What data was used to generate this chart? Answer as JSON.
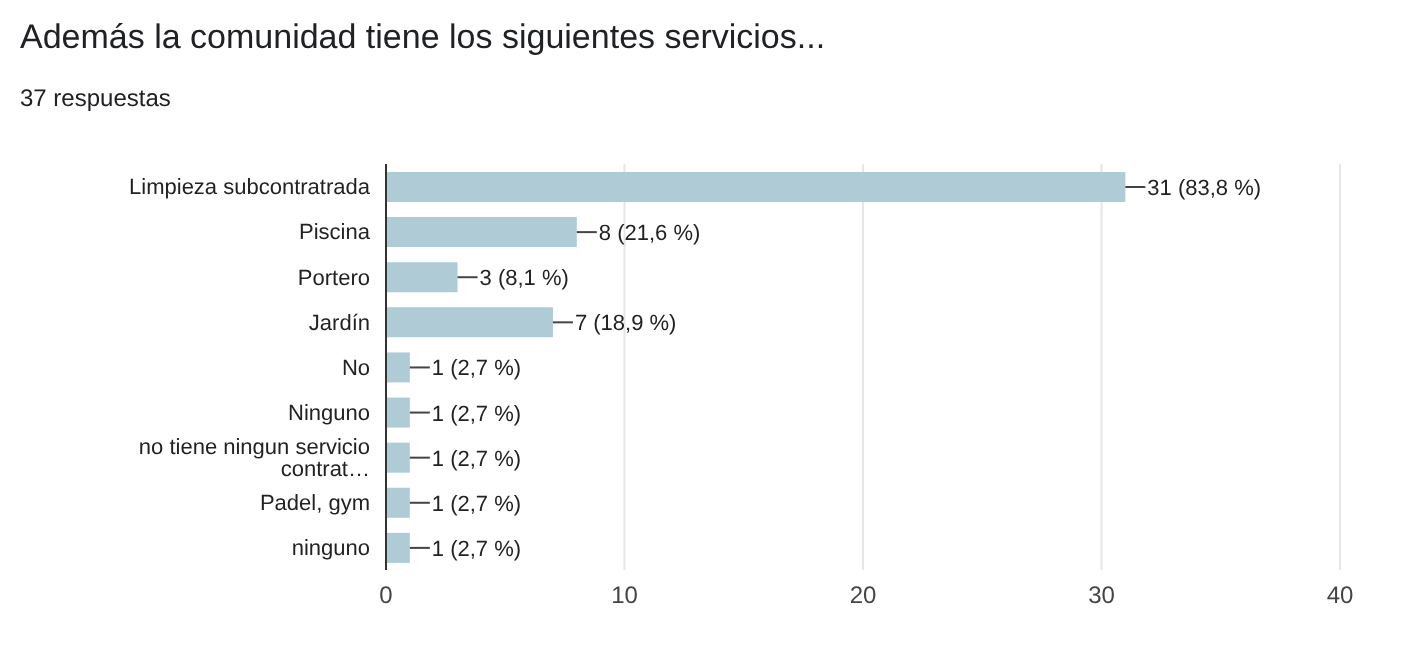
{
  "chart_data": {
    "type": "bar",
    "orientation": "horizontal",
    "title": "Además la comunidad tiene los siguientes servicios...",
    "subtitle": "37 respuestas",
    "categories": [
      "Limpieza subcontratrada",
      "Piscina",
      "Portero",
      "Jardín",
      "No",
      "Ninguno",
      "no tiene ningun servicio contrat…",
      "Padel, gym",
      "ninguno"
    ],
    "values": [
      31,
      8,
      3,
      7,
      1,
      1,
      1,
      1,
      1
    ],
    "value_labels": [
      "31 (83,8 %)",
      "8 (21,6 %)",
      "3 (8,1 %)",
      "7 (18,9 %)",
      "1 (2,7 %)",
      "1 (2,7 %)",
      "1 (2,7 %)",
      "1 (2,7 %)",
      "1 (2,7 %)"
    ],
    "color": "#aecbd6",
    "xlim": [
      0,
      40
    ],
    "xticks": [
      0,
      10,
      20,
      30,
      40
    ],
    "grid": "x",
    "legend": false
  }
}
